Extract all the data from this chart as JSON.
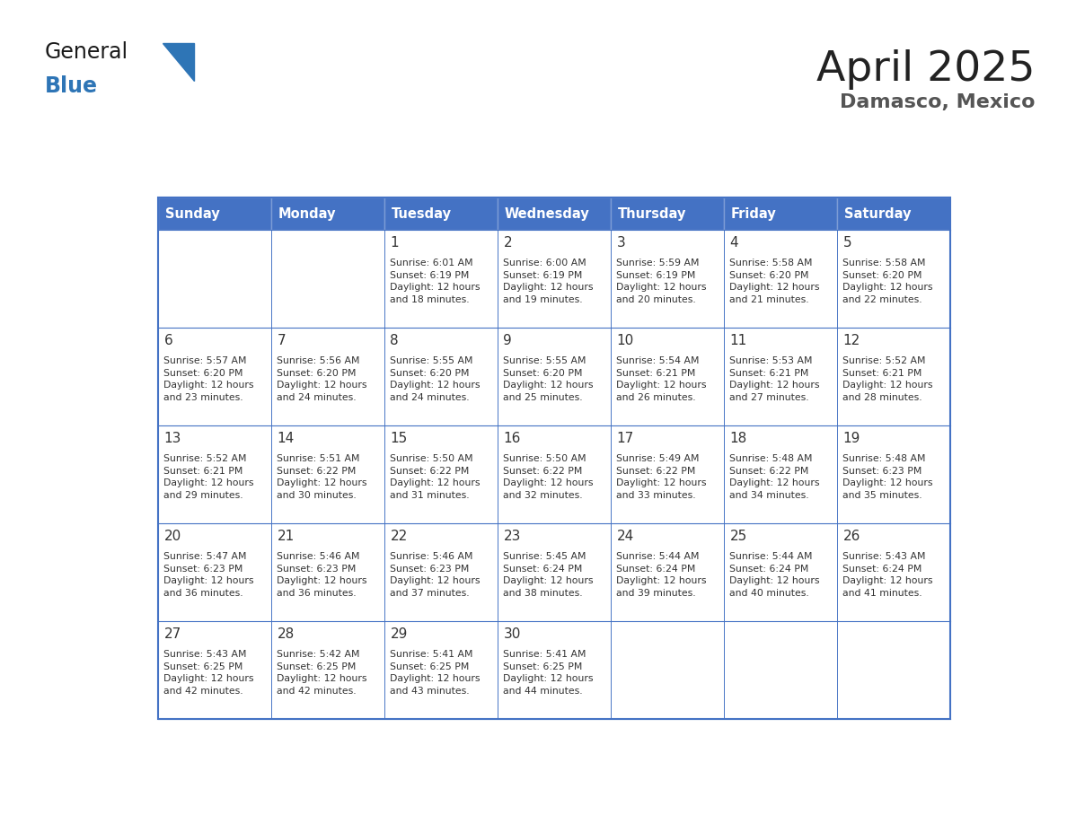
{
  "title": "April 2025",
  "subtitle": "Damasco, Mexico",
  "days_of_week": [
    "Sunday",
    "Monday",
    "Tuesday",
    "Wednesday",
    "Thursday",
    "Friday",
    "Saturday"
  ],
  "header_bg": "#4472C4",
  "header_text": "#FFFFFF",
  "day_number_color": "#333333",
  "text_color": "#333333",
  "border_color": "#4472C4",
  "title_color": "#222222",
  "subtitle_color": "#555555",
  "logo_general_color": "#1a1a1a",
  "logo_blue_color": "#2E75B6",
  "weeks": [
    {
      "days": [
        {
          "date": "",
          "sunrise": "",
          "sunset": "",
          "daylight": ""
        },
        {
          "date": "",
          "sunrise": "",
          "sunset": "",
          "daylight": ""
        },
        {
          "date": "1",
          "sunrise": "6:01 AM",
          "sunset": "6:19 PM",
          "daylight": "12 hours and 18 minutes."
        },
        {
          "date": "2",
          "sunrise": "6:00 AM",
          "sunset": "6:19 PM",
          "daylight": "12 hours and 19 minutes."
        },
        {
          "date": "3",
          "sunrise": "5:59 AM",
          "sunset": "6:19 PM",
          "daylight": "12 hours and 20 minutes."
        },
        {
          "date": "4",
          "sunrise": "5:58 AM",
          "sunset": "6:20 PM",
          "daylight": "12 hours and 21 minutes."
        },
        {
          "date": "5",
          "sunrise": "5:58 AM",
          "sunset": "6:20 PM",
          "daylight": "12 hours and 22 minutes."
        }
      ]
    },
    {
      "days": [
        {
          "date": "6",
          "sunrise": "5:57 AM",
          "sunset": "6:20 PM",
          "daylight": "12 hours and 23 minutes."
        },
        {
          "date": "7",
          "sunrise": "5:56 AM",
          "sunset": "6:20 PM",
          "daylight": "12 hours and 24 minutes."
        },
        {
          "date": "8",
          "sunrise": "5:55 AM",
          "sunset": "6:20 PM",
          "daylight": "12 hours and 24 minutes."
        },
        {
          "date": "9",
          "sunrise": "5:55 AM",
          "sunset": "6:20 PM",
          "daylight": "12 hours and 25 minutes."
        },
        {
          "date": "10",
          "sunrise": "5:54 AM",
          "sunset": "6:21 PM",
          "daylight": "12 hours and 26 minutes."
        },
        {
          "date": "11",
          "sunrise": "5:53 AM",
          "sunset": "6:21 PM",
          "daylight": "12 hours and 27 minutes."
        },
        {
          "date": "12",
          "sunrise": "5:52 AM",
          "sunset": "6:21 PM",
          "daylight": "12 hours and 28 minutes."
        }
      ]
    },
    {
      "days": [
        {
          "date": "13",
          "sunrise": "5:52 AM",
          "sunset": "6:21 PM",
          "daylight": "12 hours and 29 minutes."
        },
        {
          "date": "14",
          "sunrise": "5:51 AM",
          "sunset": "6:22 PM",
          "daylight": "12 hours and 30 minutes."
        },
        {
          "date": "15",
          "sunrise": "5:50 AM",
          "sunset": "6:22 PM",
          "daylight": "12 hours and 31 minutes."
        },
        {
          "date": "16",
          "sunrise": "5:50 AM",
          "sunset": "6:22 PM",
          "daylight": "12 hours and 32 minutes."
        },
        {
          "date": "17",
          "sunrise": "5:49 AM",
          "sunset": "6:22 PM",
          "daylight": "12 hours and 33 minutes."
        },
        {
          "date": "18",
          "sunrise": "5:48 AM",
          "sunset": "6:22 PM",
          "daylight": "12 hours and 34 minutes."
        },
        {
          "date": "19",
          "sunrise": "5:48 AM",
          "sunset": "6:23 PM",
          "daylight": "12 hours and 35 minutes."
        }
      ]
    },
    {
      "days": [
        {
          "date": "20",
          "sunrise": "5:47 AM",
          "sunset": "6:23 PM",
          "daylight": "12 hours and 36 minutes."
        },
        {
          "date": "21",
          "sunrise": "5:46 AM",
          "sunset": "6:23 PM",
          "daylight": "12 hours and 36 minutes."
        },
        {
          "date": "22",
          "sunrise": "5:46 AM",
          "sunset": "6:23 PM",
          "daylight": "12 hours and 37 minutes."
        },
        {
          "date": "23",
          "sunrise": "5:45 AM",
          "sunset": "6:24 PM",
          "daylight": "12 hours and 38 minutes."
        },
        {
          "date": "24",
          "sunrise": "5:44 AM",
          "sunset": "6:24 PM",
          "daylight": "12 hours and 39 minutes."
        },
        {
          "date": "25",
          "sunrise": "5:44 AM",
          "sunset": "6:24 PM",
          "daylight": "12 hours and 40 minutes."
        },
        {
          "date": "26",
          "sunrise": "5:43 AM",
          "sunset": "6:24 PM",
          "daylight": "12 hours and 41 minutes."
        }
      ]
    },
    {
      "days": [
        {
          "date": "27",
          "sunrise": "5:43 AM",
          "sunset": "6:25 PM",
          "daylight": "12 hours and 42 minutes."
        },
        {
          "date": "28",
          "sunrise": "5:42 AM",
          "sunset": "6:25 PM",
          "daylight": "12 hours and 42 minutes."
        },
        {
          "date": "29",
          "sunrise": "5:41 AM",
          "sunset": "6:25 PM",
          "daylight": "12 hours and 43 minutes."
        },
        {
          "date": "30",
          "sunrise": "5:41 AM",
          "sunset": "6:25 PM",
          "daylight": "12 hours and 44 minutes."
        },
        {
          "date": "",
          "sunrise": "",
          "sunset": "",
          "daylight": ""
        },
        {
          "date": "",
          "sunrise": "",
          "sunset": "",
          "daylight": ""
        },
        {
          "date": "",
          "sunrise": "",
          "sunset": "",
          "daylight": ""
        }
      ]
    }
  ]
}
